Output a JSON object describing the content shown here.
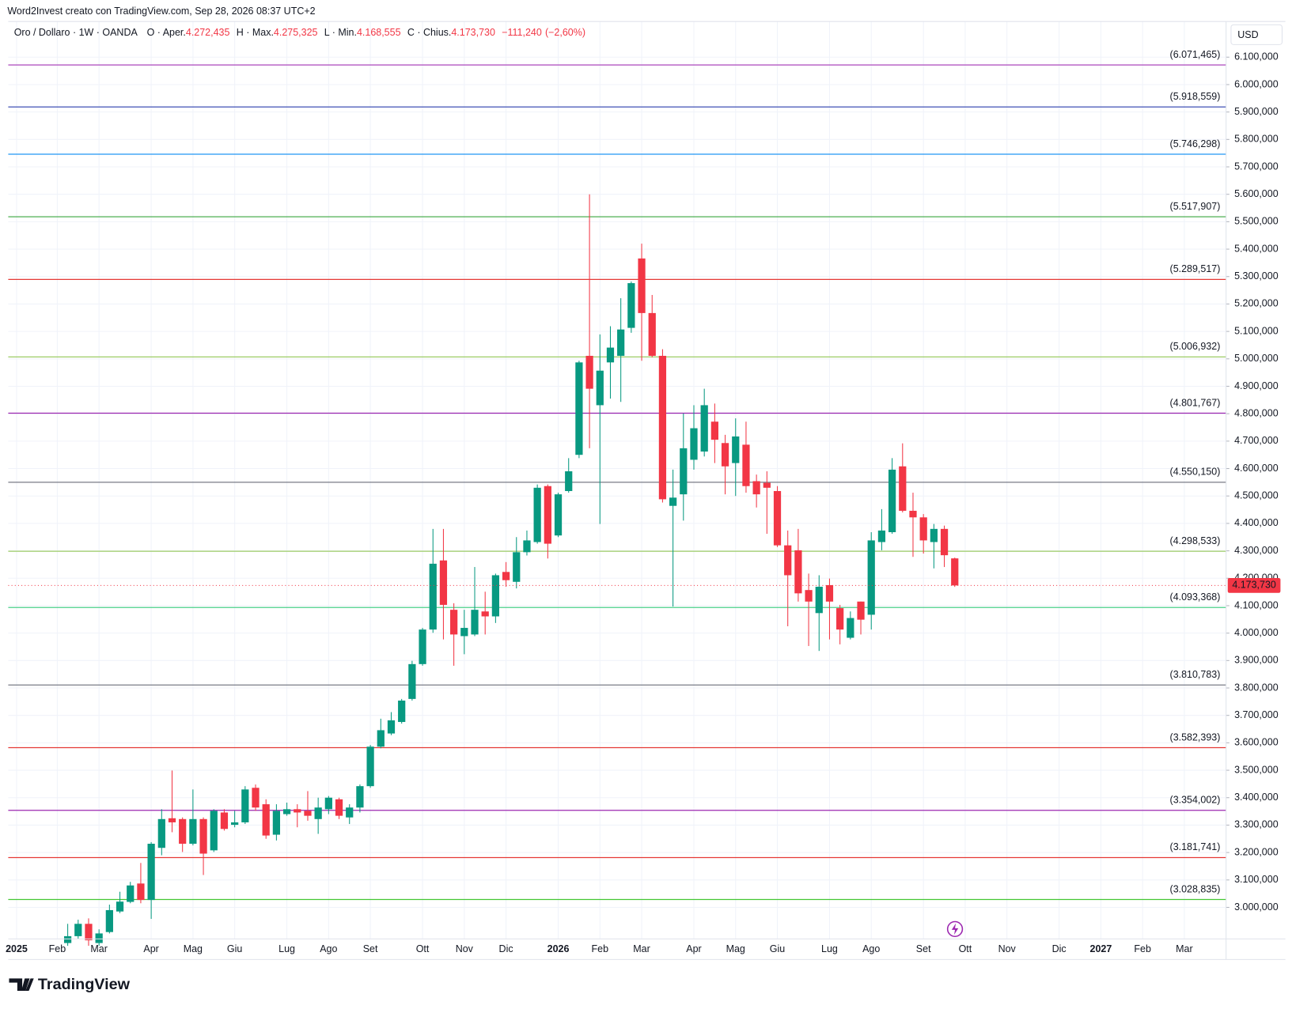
{
  "header": {
    "text": "Word2Invest creato con TradingView.com, Sep 28, 2026 08:37 UTC+2"
  },
  "legend": {
    "symbol": "Oro / Dollaro · 1W · OANDA",
    "items": [
      {
        "name": "O · Aper.",
        "value": 4272.435,
        "label": "4.272,435"
      },
      {
        "name": "H · Max.",
        "value": 4275.325,
        "label": "4.275,325"
      },
      {
        "name": "L · Min.",
        "value": 4168.555,
        "label": "4.168,555"
      },
      {
        "name": "C · Chius.",
        "value": 4173.73,
        "label": "4.173,730"
      }
    ],
    "change": {
      "value": -111.24,
      "label": "−111,240",
      "percent": -2.6,
      "percent_label": "(−2,60%)"
    }
  },
  "currency": "USD",
  "brand": "TradingView",
  "chart_data": {
    "type": "candlestick",
    "up_color": "#089981",
    "down_color": "#f23645",
    "open": [
      2870,
      2895,
      2940,
      2870,
      2910,
      2985,
      3020,
      3087,
      3027,
      3217,
      3325,
      3322,
      3232,
      3322,
      3208,
      3346,
      3301,
      3310,
      3436,
      3376,
      3265,
      3340,
      3358,
      3352,
      3322,
      3358,
      3394,
      3328,
      3364,
      3442,
      3586,
      3634,
      3676,
      3760,
      3887,
      4013,
      4265,
      4085,
      3989,
      3995,
      4079,
      4061,
      4223,
      4187,
      4295,
      4332,
      4536,
      4356,
      4518,
      4650,
      5011,
      4831,
      4987,
      5011,
      5113,
      5366,
      5167,
      5011,
      4464,
      4506,
      4632,
      4662,
      4771,
      4693,
      4620,
      4687,
      4554,
      4548,
      4518,
      4320,
      4302,
      4157,
      4073,
      4175,
      4091,
      3983,
      4115,
      4067,
      4332,
      4368,
      4608,
      4446,
      4422,
      4332,
      4380,
      4272.435
    ],
    "high": [
      2940,
      2955,
      2960,
      2920,
      3010,
      3057,
      3093,
      3162,
      3238,
      3358,
      3499,
      3328,
      3430,
      3328,
      3358,
      3358,
      3352,
      3442,
      3448,
      3394,
      3376,
      3382,
      3376,
      3424,
      3400,
      3406,
      3400,
      3376,
      3448,
      3592,
      3688,
      3712,
      3760,
      3899,
      4019,
      4380,
      4380,
      4109,
      4085,
      4241,
      4151,
      4217,
      4259,
      4350,
      4374,
      4542,
      4542,
      4512,
      4638,
      4993,
      5600,
      5089,
      5119,
      5221,
      5282,
      5420,
      5233,
      5035,
      4596,
      4801,
      4831,
      4891,
      4837,
      4723,
      4783,
      4771,
      4578,
      4590,
      4536,
      4374,
      4380,
      4217,
      4211,
      4199,
      4103,
      4079,
      4115,
      4368,
      4452,
      4638,
      4692,
      4512,
      4434,
      4398,
      4392,
      4275.325
    ],
    "low": [
      2860,
      2885,
      2860,
      2860,
      2905,
      2979,
      3015,
      3015,
      2958,
      3190,
      3274,
      3202,
      3226,
      3118,
      3202,
      3280,
      3292,
      3304,
      3352,
      3250,
      3244,
      3334,
      3292,
      3316,
      3268,
      3340,
      3322,
      3304,
      3346,
      3436,
      3580,
      3628,
      3670,
      3754,
      3881,
      4001,
      3977,
      3881,
      3923,
      3989,
      3995,
      4037,
      4169,
      4163,
      4283,
      4326,
      4272,
      4350,
      4512,
      4638,
      4674,
      4398,
      4855,
      4843,
      5095,
      4993,
      5005,
      4476,
      4097,
      4410,
      4596,
      4644,
      4620,
      4506,
      4500,
      4512,
      4458,
      4362,
      4314,
      4025,
      4115,
      3953,
      3935,
      3977,
      3959,
      3977,
      3995,
      4013,
      4302,
      4362,
      4440,
      4278,
      4290,
      4236,
      4241,
      4168.555
    ],
    "close": [
      2895,
      2940,
      2880,
      2905,
      2990,
      3021,
      3080,
      3027,
      3232,
      3322,
      3310,
      3232,
      3322,
      3196,
      3352,
      3286,
      3310,
      3430,
      3364,
      3262,
      3352,
      3358,
      3346,
      3334,
      3364,
      3400,
      3334,
      3364,
      3442,
      3586,
      3646,
      3682,
      3754,
      3887,
      4013,
      4253,
      4103,
      3995,
      4019,
      4085,
      4061,
      4211,
      4193,
      4295,
      4338,
      4530,
      4326,
      4506,
      4590,
      4987,
      4891,
      4957,
      5041,
      5107,
      5276,
      5167,
      5011,
      4488,
      4494,
      4674,
      4747,
      4831,
      4705,
      4608,
      4717,
      4536,
      4506,
      4530,
      4320,
      4211,
      4145,
      4115,
      4169,
      4115,
      4013,
      4055,
      4049,
      4338,
      4374,
      4596,
      4446,
      4422,
      4338,
      4380,
      4284,
      4173.73
    ],
    "xlim": [
      -5.7,
      111
    ],
    "xticks": [
      {
        "value": -4.9,
        "label": "2025",
        "bold": true
      },
      {
        "value": -1,
        "label": "Feb"
      },
      {
        "value": 3,
        "label": "Mar"
      },
      {
        "value": 8,
        "label": "Apr"
      },
      {
        "value": 12,
        "label": "Mag"
      },
      {
        "value": 16,
        "label": "Giu"
      },
      {
        "value": 21,
        "label": "Lug"
      },
      {
        "value": 25,
        "label": "Ago"
      },
      {
        "value": 29,
        "label": "Set"
      },
      {
        "value": 34,
        "label": "Ott"
      },
      {
        "value": 38,
        "label": "Nov"
      },
      {
        "value": 42,
        "label": "Dic"
      },
      {
        "value": 47,
        "label": "2026",
        "bold": true
      },
      {
        "value": 51,
        "label": "Feb"
      },
      {
        "value": 55,
        "label": "Mar"
      },
      {
        "value": 60,
        "label": "Apr"
      },
      {
        "value": 64,
        "label": "Mag"
      },
      {
        "value": 68,
        "label": "Giu"
      },
      {
        "value": 73,
        "label": "Lug"
      },
      {
        "value": 77,
        "label": "Ago"
      },
      {
        "value": 82,
        "label": "Set"
      },
      {
        "value": 86,
        "label": "Ott"
      },
      {
        "value": 90,
        "label": "Nov"
      },
      {
        "value": 95,
        "label": "Dic"
      },
      {
        "value": 99,
        "label": "2027",
        "bold": true
      },
      {
        "value": 103,
        "label": "Feb"
      },
      {
        "value": 107,
        "label": "Mar"
      }
    ],
    "ylim": [
      2885,
      6230
    ],
    "yticks": [
      {
        "value": 3000,
        "label": "3.000,000"
      },
      {
        "value": 3100,
        "label": "3.100,000"
      },
      {
        "value": 3200,
        "label": "3.200,000"
      },
      {
        "value": 3300,
        "label": "3.300,000"
      },
      {
        "value": 3400,
        "label": "3.400,000"
      },
      {
        "value": 3500,
        "label": "3.500,000"
      },
      {
        "value": 3600,
        "label": "3.600,000"
      },
      {
        "value": 3700,
        "label": "3.700,000"
      },
      {
        "value": 3800,
        "label": "3.800,000"
      },
      {
        "value": 3900,
        "label": "3.900,000"
      },
      {
        "value": 4000,
        "label": "4.000,000"
      },
      {
        "value": 4100,
        "label": "4.100,000"
      },
      {
        "value": 4200,
        "label": "4.200,000"
      },
      {
        "value": 4300,
        "label": "4.300,000"
      },
      {
        "value": 4400,
        "label": "4.400,000"
      },
      {
        "value": 4500,
        "label": "4.500,000"
      },
      {
        "value": 4600,
        "label": "4.600,000"
      },
      {
        "value": 4700,
        "label": "4.700,000"
      },
      {
        "value": 4800,
        "label": "4.800,000"
      },
      {
        "value": 4900,
        "label": "4.900,000"
      },
      {
        "value": 5000,
        "label": "5.000,000"
      },
      {
        "value": 5100,
        "label": "5.100,000"
      },
      {
        "value": 5200,
        "label": "5.200,000"
      },
      {
        "value": 5300,
        "label": "5.300,000"
      },
      {
        "value": 5400,
        "label": "5.400,000"
      },
      {
        "value": 5500,
        "label": "5.500,000"
      },
      {
        "value": 5600,
        "label": "5.600,000"
      },
      {
        "value": 5700,
        "label": "5.700,000"
      },
      {
        "value": 5800,
        "label": "5.800,000"
      },
      {
        "value": 5900,
        "label": "5.900,000"
      },
      {
        "value": 6000,
        "label": "6.000,000"
      },
      {
        "value": 6100,
        "label": "6.100,000"
      }
    ],
    "grid": true,
    "levels": [
      {
        "value": 6071.465,
        "label": "(6.071,465)",
        "color": "#ab47bc"
      },
      {
        "value": 5918.559,
        "label": "(5.918,559)",
        "color": "#3f51b5"
      },
      {
        "value": 5746.298,
        "label": "(5.746,298)",
        "color": "#2196f3"
      },
      {
        "value": 5517.907,
        "label": "(5.517,907)",
        "color": "#4caf50"
      },
      {
        "value": 5289.517,
        "label": "(5.289,517)",
        "color": "#e53935"
      },
      {
        "value": 5006.932,
        "label": "(5.006,932)",
        "color": "#9ccc65"
      },
      {
        "value": 4801.767,
        "label": "(4.801,767)",
        "color": "#9c27b0"
      },
      {
        "value": 4550.15,
        "label": "(4.550,150)",
        "color": "#787b86"
      },
      {
        "value": 4298.533,
        "label": "(4.298,533)",
        "color": "#9ccc65"
      },
      {
        "value": 4093.368,
        "label": "(4.093,368)",
        "color": "#4cd08a"
      },
      {
        "value": 3810.783,
        "label": "(3.810,783)",
        "color": "#787b86"
      },
      {
        "value": 3582.393,
        "label": "(3.582,393)",
        "color": "#e53935"
      },
      {
        "value": 3354.002,
        "label": "(3.354,002)",
        "color": "#9c27b0"
      },
      {
        "value": 3181.741,
        "label": "(3.181,741)",
        "color": "#e53935"
      },
      {
        "value": 3028.835,
        "label": "(3.028,835)",
        "color": "#43c633"
      }
    ],
    "last_price": {
      "value": 4173.73,
      "label": "4.173,730",
      "color": "#f23645"
    }
  }
}
